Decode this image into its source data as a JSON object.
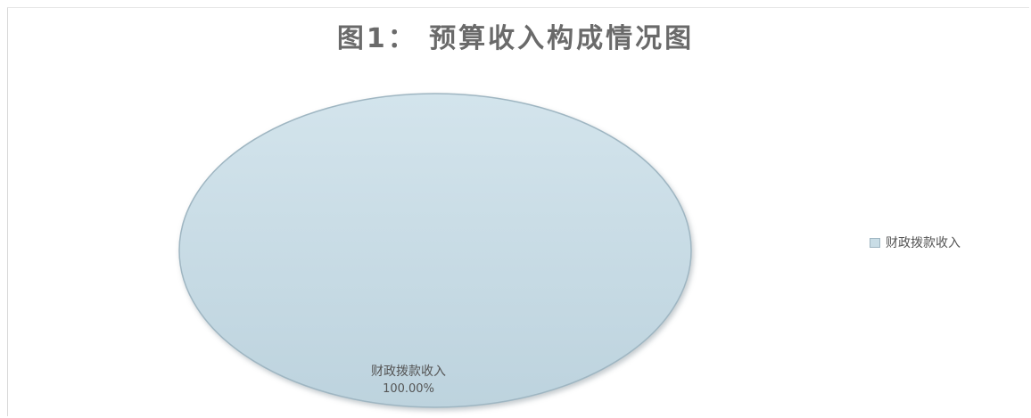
{
  "chart_data": {
    "type": "pie",
    "title": "图1：  预算收入构成情况图",
    "categories": [
      "财政拨款收入"
    ],
    "values": [
      100.0
    ],
    "data_labels": [
      "财政拨款收入",
      "100.00%"
    ],
    "legend": {
      "placement": "right",
      "entries": [
        "财政拨款收入"
      ]
    },
    "colors": {
      "slice_fill": "#c9dde6",
      "slice_edge": "#9fb6c2",
      "title": "#6a6a6a",
      "label": "#555555"
    }
  }
}
